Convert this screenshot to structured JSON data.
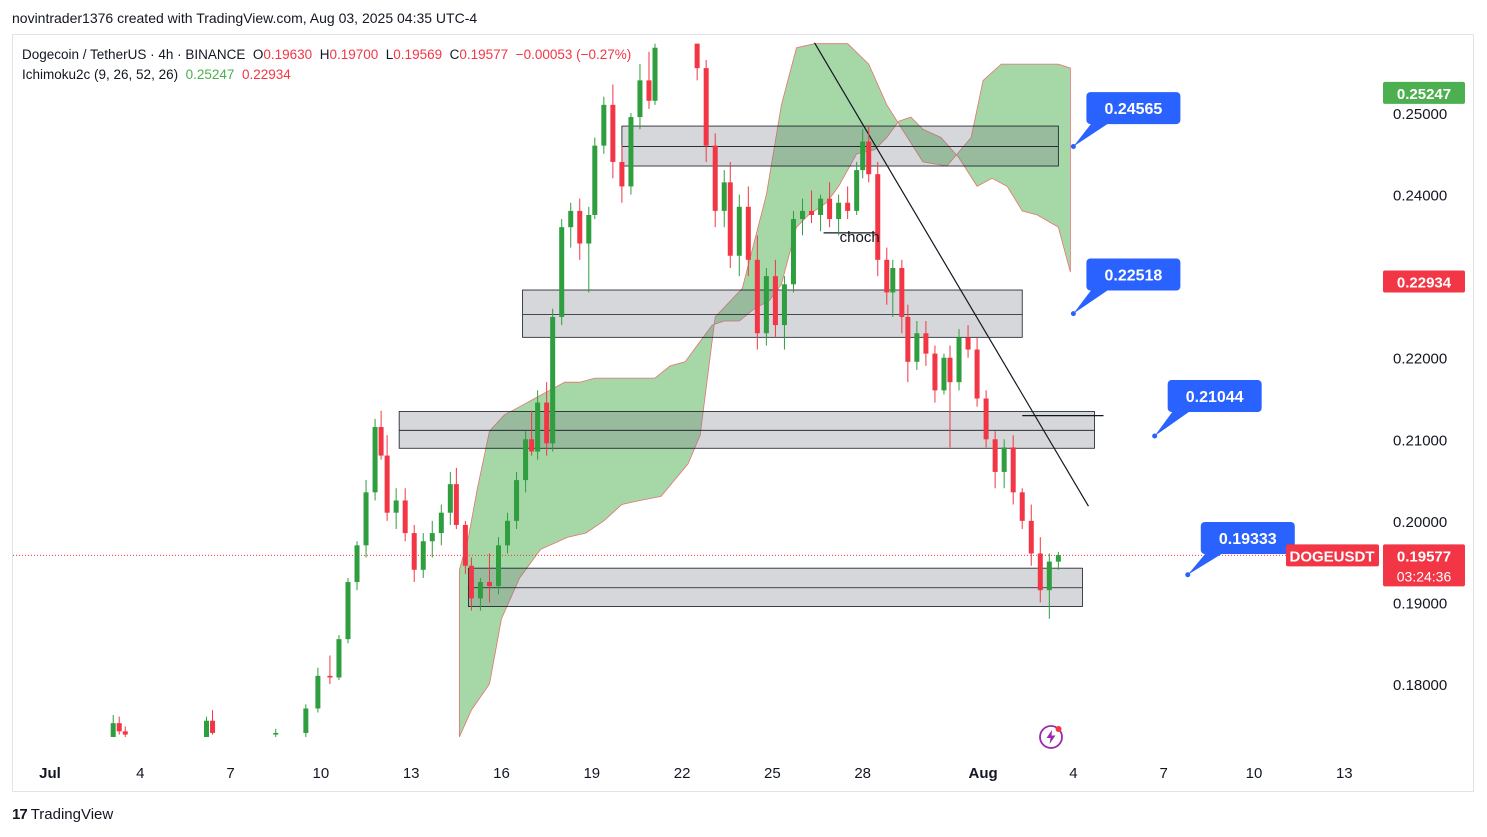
{
  "header": {
    "author_line": "novintrader1376 created with TradingView.com, Aug 03, 2025 04:35 UTC-4"
  },
  "legend": {
    "symbol": "Dogecoin / TetherUS · 4h · BINANCE",
    "o_label": "O",
    "o_value": "0.19630",
    "h_label": "H",
    "h_value": "0.19700",
    "l_label": "L",
    "l_value": "0.19569",
    "c_label": "C",
    "c_value": "0.19577",
    "change": "−0.00053 (−0.27%)",
    "indicator_name": "Ichimoku2c (9, 26, 52, 26)",
    "indicator_value_1": "0.25247",
    "indicator_value_2": "0.22934"
  },
  "footer": {
    "brand": "TradingView",
    "brand_mark": "17"
  },
  "chart_data": {
    "type": "candlestick",
    "symbol": "DOGEUSDT",
    "timeframe": "4h",
    "ylim": [
      0.1735,
      0.2585
    ],
    "y_ticks": [
      "0.25000",
      "0.24000",
      "0.22000",
      "0.21000",
      "0.20000",
      "0.19000",
      "0.18000"
    ],
    "y_tick_values": [
      0.25,
      0.24,
      0.22,
      0.21,
      0.2,
      0.19,
      0.18
    ],
    "x_ticks": [
      "Jul",
      "4",
      "7",
      "10",
      "13",
      "16",
      "19",
      "22",
      "25",
      "28",
      "Aug",
      "4",
      "7",
      "10",
      "13"
    ],
    "x_tick_days": [
      1,
      4,
      7,
      10,
      13,
      16,
      19,
      22,
      25,
      28,
      32,
      35,
      38,
      41,
      44
    ],
    "last_price": {
      "label": "DOGEUSDT",
      "value": "0.19577",
      "countdown": "03:24:36",
      "price": 0.19577
    },
    "cloud_labels": [
      {
        "value": "0.25247",
        "price": 0.25247,
        "color": "#4caf50"
      },
      {
        "value": "0.22934",
        "price": 0.22934,
        "color": "#f23645"
      }
    ],
    "zones": [
      {
        "day_start": 20.0,
        "day_end": 34.5,
        "top": 0.2484,
        "mid": 0.2459,
        "bottom": 0.2435
      },
      {
        "day_start": 16.7,
        "day_end": 33.3,
        "top": 0.2283,
        "mid": 0.2253,
        "bottom": 0.2225
      },
      {
        "day_start": 12.6,
        "day_end": 35.7,
        "top": 0.2134,
        "mid": 0.2111,
        "bottom": 0.2089
      },
      {
        "day_start": 14.9,
        "day_end": 35.3,
        "top": 0.1942,
        "mid": 0.1918,
        "bottom": 0.1895
      }
    ],
    "callouts": [
      {
        "value": "0.24565",
        "price": 0.2506,
        "anchor_day": 35.0,
        "anchor_price": 0.2459
      },
      {
        "value": "0.22518",
        "price": 0.2302,
        "anchor_day": 35.0,
        "anchor_price": 0.2254
      },
      {
        "value": "0.21044",
        "price": 0.2153,
        "anchor_day": 37.7,
        "anchor_price": 0.2104
      },
      {
        "value": "0.19333",
        "price": 0.1979,
        "anchor_day": 38.8,
        "anchor_price": 0.1934
      }
    ],
    "annotations": [
      {
        "text": "choch",
        "day": 27.9,
        "price": 0.2363
      }
    ],
    "trendline": {
      "day_start": 26.4,
      "price_start": 0.2586,
      "day_end": 35.5,
      "price_end": 0.2018
    },
    "hlines": [
      {
        "day_start": 26.7,
        "day_end": 28.5,
        "price": 0.2353
      },
      {
        "day_start": 33.3,
        "day_end": 36.0,
        "price": 0.2129
      }
    ],
    "candles": [
      {
        "d": 3.1,
        "o": 0.1735,
        "h": 0.1762,
        "l": 0.1735,
        "c": 0.1752
      },
      {
        "d": 3.3,
        "o": 0.1752,
        "h": 0.176,
        "l": 0.1738,
        "c": 0.1742
      },
      {
        "d": 3.5,
        "o": 0.1742,
        "h": 0.1748,
        "l": 0.1735,
        "c": 0.1738
      },
      {
        "d": 6.2,
        "o": 0.1735,
        "h": 0.176,
        "l": 0.1735,
        "c": 0.1755
      },
      {
        "d": 6.4,
        "o": 0.1755,
        "h": 0.1768,
        "l": 0.1738,
        "c": 0.174
      },
      {
        "d": 8.5,
        "o": 0.1738,
        "h": 0.1745,
        "l": 0.1735,
        "c": 0.174
      },
      {
        "d": 9.5,
        "o": 0.174,
        "h": 0.1775,
        "l": 0.1735,
        "c": 0.177
      },
      {
        "d": 9.9,
        "o": 0.177,
        "h": 0.182,
        "l": 0.1765,
        "c": 0.181
      },
      {
        "d": 10.3,
        "o": 0.181,
        "h": 0.1835,
        "l": 0.18,
        "c": 0.1808
      },
      {
        "d": 10.6,
        "o": 0.1808,
        "h": 0.186,
        "l": 0.1805,
        "c": 0.1855
      },
      {
        "d": 10.9,
        "o": 0.1855,
        "h": 0.193,
        "l": 0.185,
        "c": 0.1925
      },
      {
        "d": 11.2,
        "o": 0.1925,
        "h": 0.1975,
        "l": 0.1915,
        "c": 0.197
      },
      {
        "d": 11.5,
        "o": 0.197,
        "h": 0.205,
        "l": 0.1955,
        "c": 0.2035
      },
      {
        "d": 11.8,
        "o": 0.2035,
        "h": 0.2125,
        "l": 0.2025,
        "c": 0.2115
      },
      {
        "d": 12.0,
        "o": 0.2115,
        "h": 0.2135,
        "l": 0.2075,
        "c": 0.208
      },
      {
        "d": 12.2,
        "o": 0.208,
        "h": 0.2105,
        "l": 0.2,
        "c": 0.201
      },
      {
        "d": 12.5,
        "o": 0.201,
        "h": 0.204,
        "l": 0.199,
        "c": 0.2025
      },
      {
        "d": 12.8,
        "o": 0.2025,
        "h": 0.204,
        "l": 0.1975,
        "c": 0.1985
      },
      {
        "d": 13.1,
        "o": 0.1985,
        "h": 0.1995,
        "l": 0.1925,
        "c": 0.194
      },
      {
        "d": 13.4,
        "o": 0.194,
        "h": 0.1985,
        "l": 0.193,
        "c": 0.1975
      },
      {
        "d": 13.7,
        "o": 0.1975,
        "h": 0.2,
        "l": 0.1955,
        "c": 0.1985
      },
      {
        "d": 14.0,
        "o": 0.1985,
        "h": 0.202,
        "l": 0.197,
        "c": 0.201
      },
      {
        "d": 14.3,
        "o": 0.201,
        "h": 0.206,
        "l": 0.1995,
        "c": 0.2045
      },
      {
        "d": 14.5,
        "o": 0.2045,
        "h": 0.2065,
        "l": 0.199,
        "c": 0.1995
      },
      {
        "d": 14.8,
        "o": 0.1995,
        "h": 0.2,
        "l": 0.1935,
        "c": 0.1945
      },
      {
        "d": 15.0,
        "o": 0.1945,
        "h": 0.1955,
        "l": 0.189,
        "c": 0.1905
      },
      {
        "d": 15.3,
        "o": 0.1905,
        "h": 0.193,
        "l": 0.189,
        "c": 0.1925
      },
      {
        "d": 15.6,
        "o": 0.1925,
        "h": 0.196,
        "l": 0.19,
        "c": 0.192
      },
      {
        "d": 15.9,
        "o": 0.192,
        "h": 0.198,
        "l": 0.191,
        "c": 0.197
      },
      {
        "d": 16.2,
        "o": 0.197,
        "h": 0.201,
        "l": 0.196,
        "c": 0.2
      },
      {
        "d": 16.5,
        "o": 0.2,
        "h": 0.206,
        "l": 0.199,
        "c": 0.205
      },
      {
        "d": 16.8,
        "o": 0.205,
        "h": 0.211,
        "l": 0.2035,
        "c": 0.21
      },
      {
        "d": 17.0,
        "o": 0.21,
        "h": 0.2135,
        "l": 0.208,
        "c": 0.2085
      },
      {
        "d": 17.2,
        "o": 0.2085,
        "h": 0.216,
        "l": 0.2075,
        "c": 0.2145
      },
      {
        "d": 17.5,
        "o": 0.2145,
        "h": 0.217,
        "l": 0.208,
        "c": 0.2095
      },
      {
        "d": 17.7,
        "o": 0.2095,
        "h": 0.226,
        "l": 0.2085,
        "c": 0.225
      },
      {
        "d": 18.0,
        "o": 0.225,
        "h": 0.237,
        "l": 0.224,
        "c": 0.236
      },
      {
        "d": 18.3,
        "o": 0.236,
        "h": 0.239,
        "l": 0.2335,
        "c": 0.238
      },
      {
        "d": 18.6,
        "o": 0.238,
        "h": 0.2395,
        "l": 0.232,
        "c": 0.234
      },
      {
        "d": 18.9,
        "o": 0.234,
        "h": 0.2385,
        "l": 0.228,
        "c": 0.2375
      },
      {
        "d": 19.1,
        "o": 0.2375,
        "h": 0.247,
        "l": 0.237,
        "c": 0.246
      },
      {
        "d": 19.4,
        "o": 0.246,
        "h": 0.252,
        "l": 0.245,
        "c": 0.251
      },
      {
        "d": 19.7,
        "o": 0.251,
        "h": 0.2535,
        "l": 0.242,
        "c": 0.244
      },
      {
        "d": 20.0,
        "o": 0.244,
        "h": 0.246,
        "l": 0.239,
        "c": 0.241
      },
      {
        "d": 20.3,
        "o": 0.241,
        "h": 0.25,
        "l": 0.24,
        "c": 0.2495
      },
      {
        "d": 20.6,
        "o": 0.2495,
        "h": 0.256,
        "l": 0.248,
        "c": 0.254
      },
      {
        "d": 20.9,
        "o": 0.254,
        "h": 0.2575,
        "l": 0.2505,
        "c": 0.2515
      },
      {
        "d": 21.1,
        "o": 0.2515,
        "h": 0.2585,
        "l": 0.251,
        "c": 0.258
      },
      {
        "d": 22.5,
        "o": 0.2585,
        "h": 0.2585,
        "l": 0.254,
        "c": 0.2555
      },
      {
        "d": 22.8,
        "o": 0.2555,
        "h": 0.2565,
        "l": 0.244,
        "c": 0.246
      },
      {
        "d": 23.1,
        "o": 0.246,
        "h": 0.2475,
        "l": 0.236,
        "c": 0.238
      },
      {
        "d": 23.4,
        "o": 0.238,
        "h": 0.243,
        "l": 0.236,
        "c": 0.2415
      },
      {
        "d": 23.6,
        "o": 0.2415,
        "h": 0.244,
        "l": 0.231,
        "c": 0.2325
      },
      {
        "d": 23.9,
        "o": 0.2325,
        "h": 0.24,
        "l": 0.23,
        "c": 0.2385
      },
      {
        "d": 24.2,
        "o": 0.2385,
        "h": 0.241,
        "l": 0.23,
        "c": 0.232
      },
      {
        "d": 24.5,
        "o": 0.232,
        "h": 0.235,
        "l": 0.221,
        "c": 0.223
      },
      {
        "d": 24.8,
        "o": 0.223,
        "h": 0.231,
        "l": 0.2215,
        "c": 0.23
      },
      {
        "d": 25.1,
        "o": 0.23,
        "h": 0.232,
        "l": 0.2225,
        "c": 0.224
      },
      {
        "d": 25.4,
        "o": 0.224,
        "h": 0.23,
        "l": 0.221,
        "c": 0.229
      },
      {
        "d": 25.7,
        "o": 0.229,
        "h": 0.238,
        "l": 0.228,
        "c": 0.237
      },
      {
        "d": 26.0,
        "o": 0.237,
        "h": 0.2395,
        "l": 0.235,
        "c": 0.238
      },
      {
        "d": 26.3,
        "o": 0.238,
        "h": 0.2405,
        "l": 0.2365,
        "c": 0.2375
      },
      {
        "d": 26.6,
        "o": 0.2375,
        "h": 0.24,
        "l": 0.2355,
        "c": 0.2395
      },
      {
        "d": 26.9,
        "o": 0.2395,
        "h": 0.2415,
        "l": 0.236,
        "c": 0.237
      },
      {
        "d": 27.2,
        "o": 0.237,
        "h": 0.24,
        "l": 0.235,
        "c": 0.239
      },
      {
        "d": 27.5,
        "o": 0.239,
        "h": 0.241,
        "l": 0.237,
        "c": 0.238
      },
      {
        "d": 27.8,
        "o": 0.238,
        "h": 0.244,
        "l": 0.2375,
        "c": 0.243
      },
      {
        "d": 28.0,
        "o": 0.243,
        "h": 0.248,
        "l": 0.242,
        "c": 0.2465
      },
      {
        "d": 28.2,
        "o": 0.2465,
        "h": 0.2485,
        "l": 0.2415,
        "c": 0.2425
      },
      {
        "d": 28.5,
        "o": 0.2425,
        "h": 0.244,
        "l": 0.23,
        "c": 0.232
      },
      {
        "d": 28.8,
        "o": 0.232,
        "h": 0.2335,
        "l": 0.2265,
        "c": 0.228
      },
      {
        "d": 29.0,
        "o": 0.228,
        "h": 0.232,
        "l": 0.225,
        "c": 0.231
      },
      {
        "d": 29.3,
        "o": 0.231,
        "h": 0.232,
        "l": 0.223,
        "c": 0.225
      },
      {
        "d": 29.5,
        "o": 0.225,
        "h": 0.2265,
        "l": 0.217,
        "c": 0.2195
      },
      {
        "d": 29.8,
        "o": 0.2195,
        "h": 0.2245,
        "l": 0.2185,
        "c": 0.223
      },
      {
        "d": 30.1,
        "o": 0.223,
        "h": 0.2245,
        "l": 0.219,
        "c": 0.2205
      },
      {
        "d": 30.4,
        "o": 0.2205,
        "h": 0.2215,
        "l": 0.2145,
        "c": 0.216
      },
      {
        "d": 30.7,
        "o": 0.216,
        "h": 0.2205,
        "l": 0.2155,
        "c": 0.22
      },
      {
        "d": 30.9,
        "o": 0.22,
        "h": 0.2215,
        "l": 0.209,
        "c": 0.217
      },
      {
        "d": 31.2,
        "o": 0.217,
        "h": 0.2235,
        "l": 0.216,
        "c": 0.2225
      },
      {
        "d": 31.5,
        "o": 0.2225,
        "h": 0.224,
        "l": 0.22,
        "c": 0.221
      },
      {
        "d": 31.8,
        "o": 0.221,
        "h": 0.2225,
        "l": 0.214,
        "c": 0.215
      },
      {
        "d": 32.1,
        "o": 0.215,
        "h": 0.216,
        "l": 0.209,
        "c": 0.21
      },
      {
        "d": 32.4,
        "o": 0.21,
        "h": 0.211,
        "l": 0.204,
        "c": 0.206
      },
      {
        "d": 32.7,
        "o": 0.206,
        "h": 0.21,
        "l": 0.204,
        "c": 0.209
      },
      {
        "d": 33.0,
        "o": 0.209,
        "h": 0.2105,
        "l": 0.202,
        "c": 0.2035
      },
      {
        "d": 33.3,
        "o": 0.2035,
        "h": 0.204,
        "l": 0.199,
        "c": 0.2
      },
      {
        "d": 33.6,
        "o": 0.2,
        "h": 0.202,
        "l": 0.1945,
        "c": 0.196
      },
      {
        "d": 33.9,
        "o": 0.196,
        "h": 0.198,
        "l": 0.19,
        "c": 0.1915
      },
      {
        "d": 34.2,
        "o": 0.1915,
        "h": 0.196,
        "l": 0.188,
        "c": 0.195
      },
      {
        "d": 34.5,
        "o": 0.195,
        "h": 0.1962,
        "l": 0.194,
        "c": 0.1958
      }
    ],
    "cloud": {
      "span_a": [
        [
          14.6,
          0.1735
        ],
        [
          15.0,
          0.1768
        ],
        [
          15.6,
          0.18
        ],
        [
          16.0,
          0.188
        ],
        [
          16.6,
          0.193
        ],
        [
          17.3,
          0.1965
        ],
        [
          18.2,
          0.198
        ],
        [
          18.8,
          0.1985
        ],
        [
          19.4,
          0.2
        ],
        [
          20.0,
          0.202
        ],
        [
          20.6,
          0.2025
        ],
        [
          21.3,
          0.203
        ],
        [
          22.2,
          0.207
        ],
        [
          22.6,
          0.2105
        ],
        [
          23.1,
          0.225
        ],
        [
          24.0,
          0.2285
        ],
        [
          24.8,
          0.24
        ],
        [
          25.3,
          0.251
        ],
        [
          25.8,
          0.258
        ],
        [
          26.4,
          0.2585
        ],
        [
          27.5,
          0.2585
        ],
        [
          28.2,
          0.256
        ],
        [
          28.8,
          0.251
        ],
        [
          29.4,
          0.2475
        ],
        [
          30.0,
          0.244
        ],
        [
          30.8,
          0.2435
        ],
        [
          31.6,
          0.247
        ],
        [
          32.0,
          0.254
        ],
        [
          32.6,
          0.256
        ],
        [
          33.5,
          0.256
        ],
        [
          34.5,
          0.256
        ],
        [
          34.9,
          0.2555
        ],
        [
          34.9,
          0.2305
        ],
        [
          34.5,
          0.236
        ],
        [
          33.8,
          0.2375
        ],
        [
          33.3,
          0.238
        ],
        [
          32.8,
          0.241
        ],
        [
          32.3,
          0.242
        ],
        [
          31.8,
          0.241
        ],
        [
          31.2,
          0.2445
        ],
        [
          30.6,
          0.247
        ],
        [
          30.0,
          0.248
        ],
        [
          29.6,
          0.2495
        ],
        [
          29.2,
          0.249
        ],
        [
          28.8,
          0.247
        ],
        [
          28.4,
          0.2455
        ],
        [
          27.8,
          0.245
        ],
        [
          27.2,
          0.241
        ],
        [
          26.8,
          0.239
        ],
        [
          26.2,
          0.2375
        ],
        [
          25.8,
          0.236
        ],
        [
          25.3,
          0.229
        ],
        [
          24.9,
          0.227
        ],
        [
          24.4,
          0.226
        ],
        [
          23.9,
          0.2245
        ],
        [
          23.4,
          0.2245
        ],
        [
          23.0,
          0.224
        ],
        [
          22.5,
          0.2215
        ],
        [
          22.1,
          0.2195
        ],
        [
          21.6,
          0.219
        ],
        [
          21.1,
          0.2175
        ],
        [
          20.6,
          0.2175
        ],
        [
          20.1,
          0.2175
        ],
        [
          19.6,
          0.2175
        ],
        [
          19.1,
          0.2175
        ],
        [
          18.6,
          0.217
        ],
        [
          18.1,
          0.217
        ],
        [
          17.6,
          0.216
        ],
        [
          17.1,
          0.215
        ],
        [
          16.6,
          0.214
        ],
        [
          16.1,
          0.213
        ],
        [
          15.6,
          0.211
        ],
        [
          15.2,
          0.204
        ],
        [
          14.9,
          0.198
        ],
        [
          14.6,
          0.194
        ]
      ]
    }
  }
}
